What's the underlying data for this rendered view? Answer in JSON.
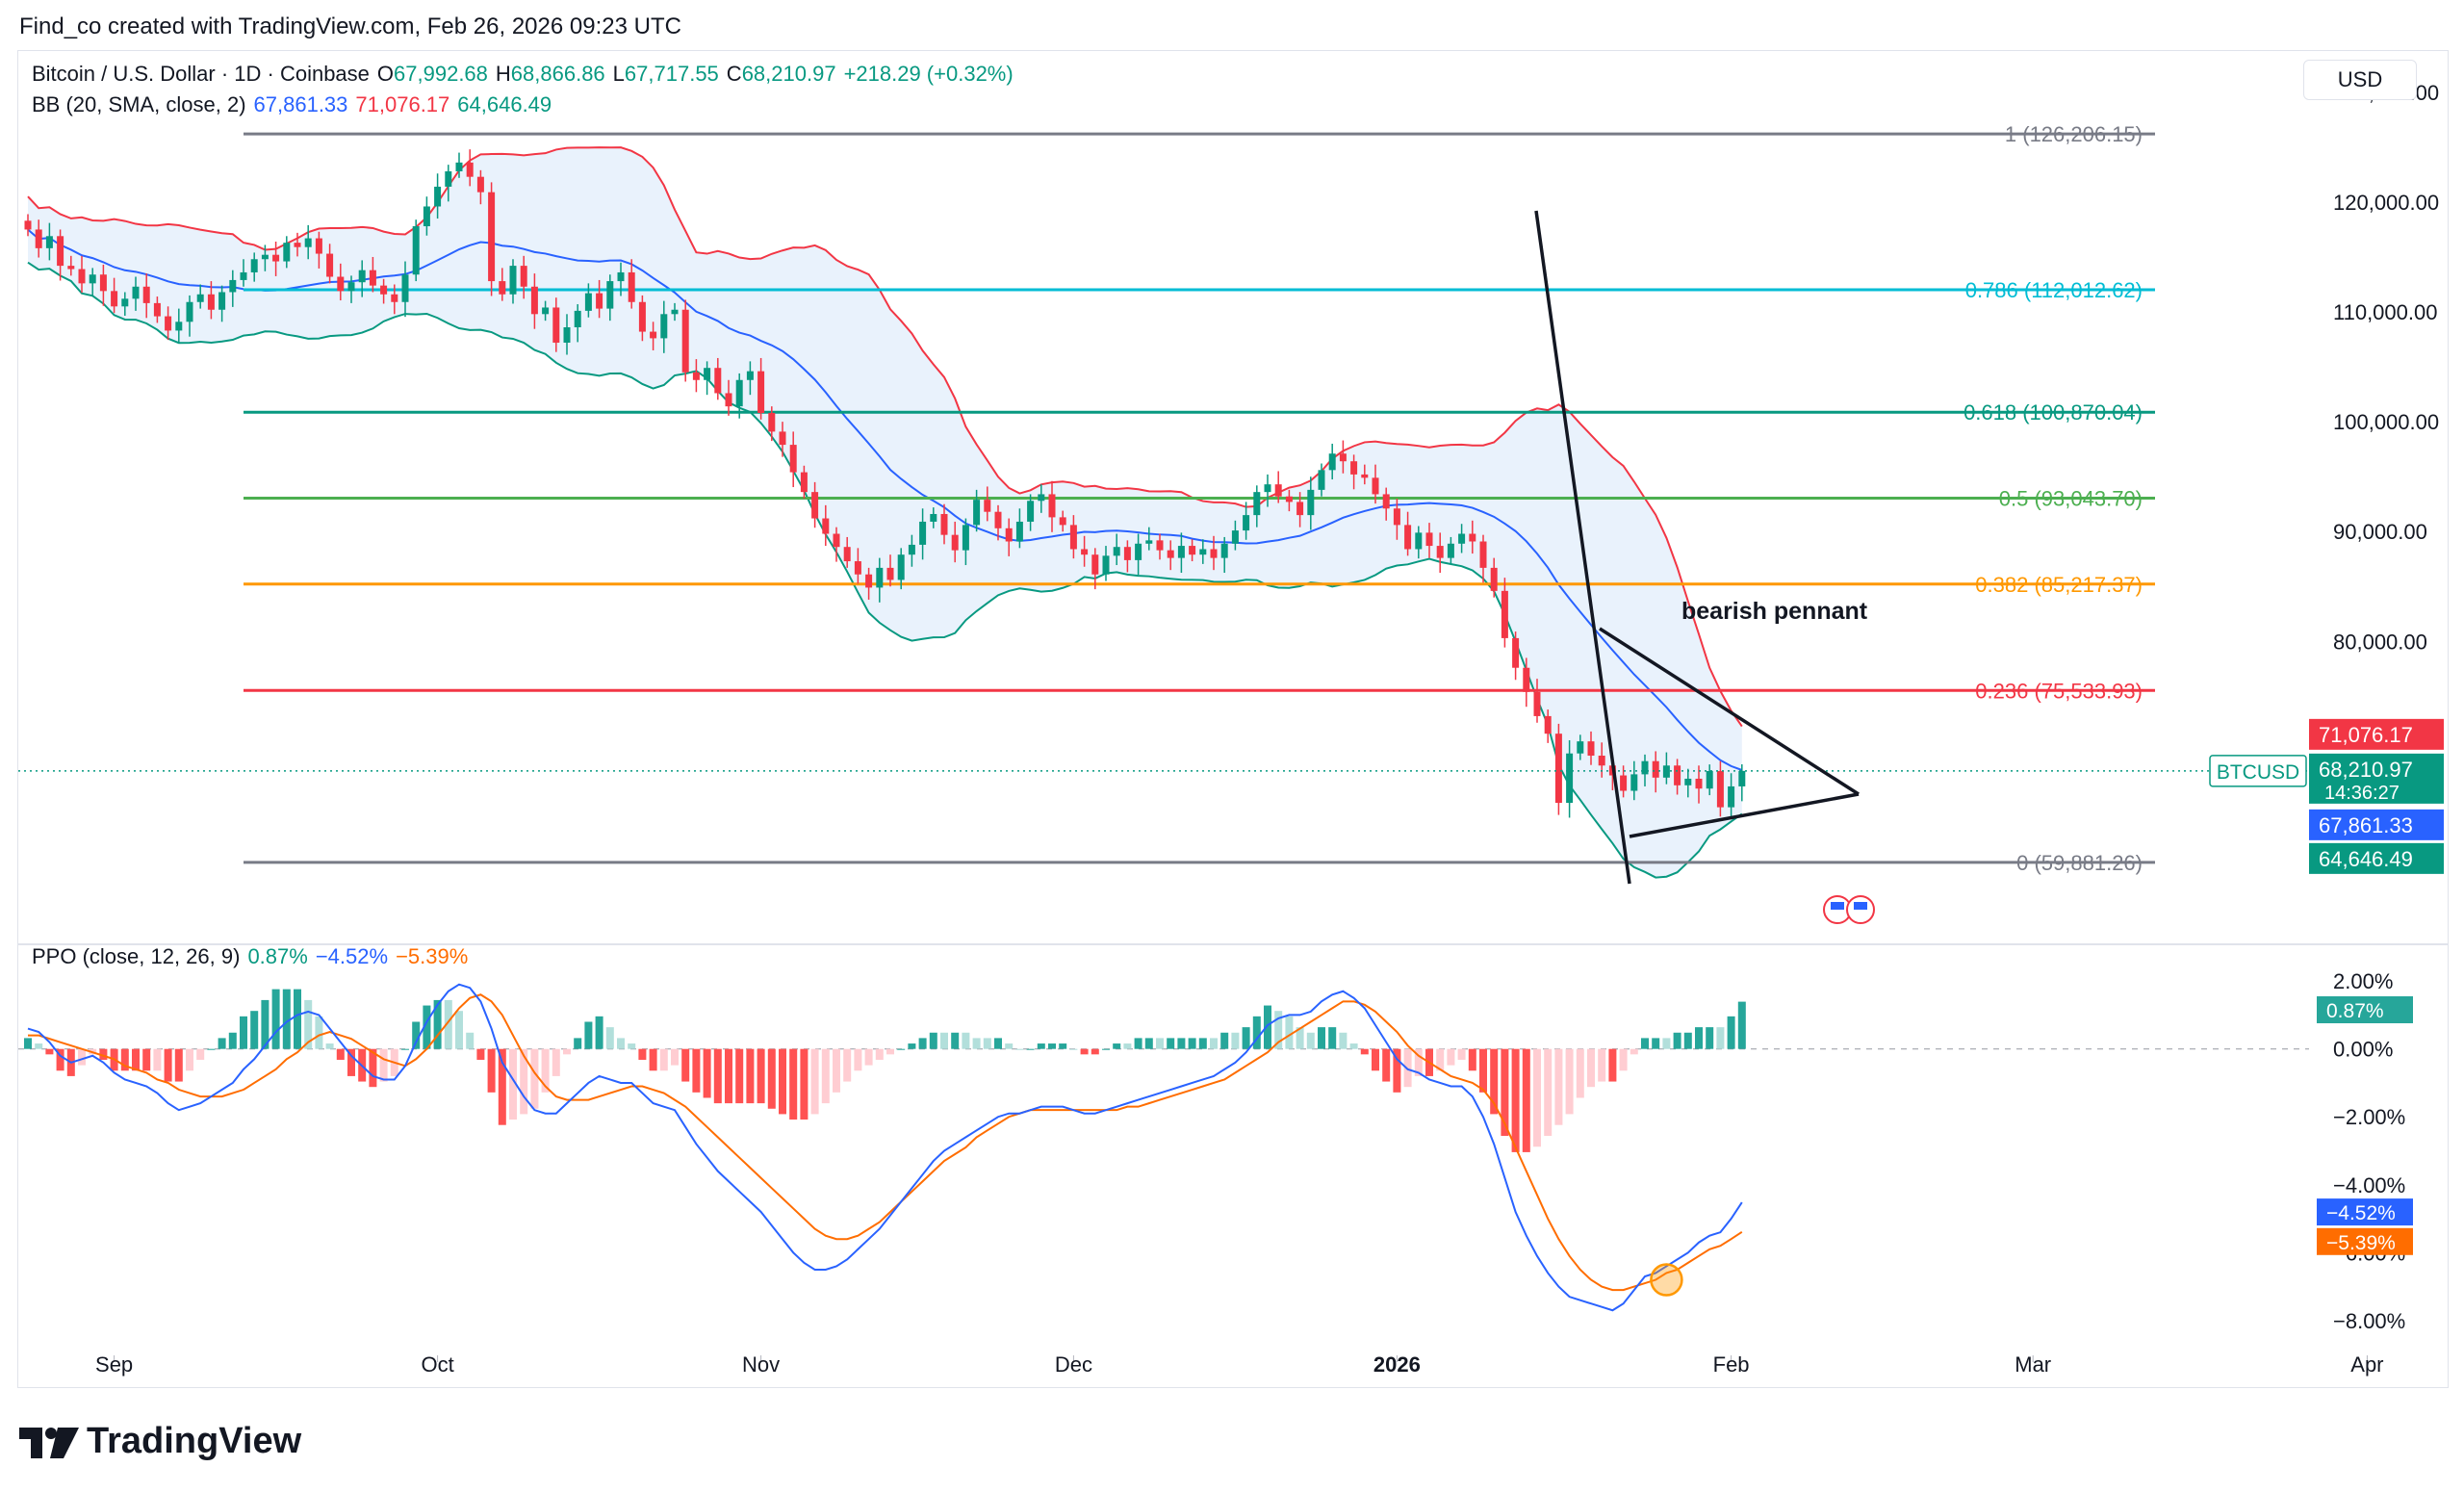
{
  "header": {
    "attribution": "Find_co created with TradingView.com, Feb 26, 2026 09:23 UTC"
  },
  "legend": {
    "symbol": "Bitcoin / U.S. Dollar · 1D · Coinbase",
    "open_label": "O",
    "open": "67,992.68",
    "high_label": "H",
    "high": "68,866.86",
    "low_label": "L",
    "low": "67,717.55",
    "close_label": "C",
    "close": "68,210.97",
    "change": "+218.29 (+0.32%)",
    "bb_label": "BB (20, SMA, close, 2)",
    "bb_basis": "67,861.33",
    "bb_upper": "71,076.17",
    "bb_lower": "64,646.49",
    "ppo_label": "PPO (close, 12, 26, 9)",
    "ppo_hist": "0.87%",
    "ppo_line": "−4.52%",
    "ppo_signal": "−5.39%"
  },
  "currency": "USD",
  "footer": {
    "brand": "TradingView"
  },
  "colors": {
    "up": "#089981",
    "down": "#f23645",
    "bb_basis": "#2962ff",
    "bb_upper": "#f23645",
    "bb_lower": "#089981",
    "bb_fill": "#e3effb",
    "ppo_line": "#2962ff",
    "ppo_signal": "#ff6d00",
    "hist_up_strong": "#26a69a",
    "hist_up_weak": "#b2dfdb",
    "hist_down_strong": "#ff5252",
    "hist_down_weak": "#ffcdd2"
  },
  "chart_data": [
    {
      "type": "candlestick",
      "x_ticks": [
        "Sep",
        "Oct",
        "Nov",
        "Dec",
        "2026",
        "Feb",
        "Mar",
        "Apr"
      ],
      "y_ticks": [
        "80,000.00",
        "90,000.00",
        "100,000.00",
        "110,000.00",
        "120,000.00",
        "130,000.00"
      ],
      "ylim": [
        54000,
        132000
      ],
      "price_label": {
        "name": "BTCUSD",
        "value": "68,210.97",
        "countdown": "14:36:27"
      },
      "axis_labels": {
        "bb_upper": "71,076.17",
        "bb_basis": "67,861.33",
        "bb_lower": "64,646.49"
      },
      "fibonacci": [
        {
          "label": "1 (126,206.15)",
          "value": 126206.15,
          "color": "#787b86"
        },
        {
          "label": "0.786 (112,012.62)",
          "value": 112012.62,
          "color": "#00bcd4"
        },
        {
          "label": "0.618 (100,870.04)",
          "value": 100870.04,
          "color": "#089981"
        },
        {
          "label": "0.5 (93,043.70)",
          "value": 93043.7,
          "color": "#4caf50"
        },
        {
          "label": "0.382 (85,217.37)",
          "value": 85217.37,
          "color": "#ff9800"
        },
        {
          "label": "0.236 (75,533.93)",
          "value": 75533.93,
          "color": "#f23645"
        },
        {
          "label": "0 (59,881.26)",
          "value": 59881.26,
          "color": "#787b86"
        }
      ],
      "annotation": "bearish pennant",
      "series": [
        {
          "name": "close",
          "values": [
            117500,
            115800,
            116900,
            114200,
            113900,
            112600,
            113400,
            111900,
            110500,
            111200,
            112300,
            110800,
            109600,
            108300,
            109100,
            110900,
            111600,
            110200,
            111800,
            112900,
            113600,
            114800,
            115200,
            114600,
            116300,
            115900,
            116700,
            115300,
            113200,
            111900,
            112700,
            113800,
            112400,
            111600,
            110900,
            113400,
            117800,
            119600,
            121400,
            122800,
            123600,
            122300,
            120900,
            112800,
            111600,
            114200,
            112300,
            109800,
            110400,
            107200,
            108600,
            110100,
            111700,
            110300,
            112800,
            113600,
            110900,
            108200,
            107600,
            109800,
            110200,
            104500,
            103800,
            104900,
            102600,
            101400,
            103800,
            104600,
            100800,
            99100,
            97900,
            95400,
            93600,
            91200,
            89800,
            88600,
            87300,
            86100,
            84900,
            86700,
            85600,
            87900,
            88800,
            90900,
            91600,
            89700,
            88300,
            90600,
            92900,
            91800,
            90300,
            89100,
            90900,
            92800,
            93400,
            91300,
            90600,
            88400,
            87900,
            86100,
            87800,
            88600,
            87400,
            88900,
            89200,
            88300,
            87600,
            88700,
            87900,
            88400,
            87600,
            88900,
            90100,
            91500,
            93600,
            94300,
            93200,
            92700,
            91500,
            93800,
            95600,
            97100,
            96400,
            95200,
            94900,
            93400,
            92100,
            90600,
            88400,
            89900,
            88700,
            87600,
            88900,
            89800,
            89100,
            86700,
            84600,
            80300,
            77600,
            75400,
            73200,
            71600,
            65300,
            69800,
            70900,
            69600,
            68700,
            67800,
            66400,
            67900,
            69100,
            67600,
            68700,
            66900,
            67500,
            66600,
            68200,
            64900,
            66800,
            68210
          ]
        }
      ]
    },
    {
      "type": "line",
      "title": "PPO (close, 12, 26, 9)",
      "y_ticks": [
        "2.00%",
        "0.00%",
        "−2.00%",
        "−4.00%",
        "−6.00%",
        "−8.00%"
      ],
      "ylim": [
        -8.6,
        2.6
      ],
      "value_labels": {
        "hist": "0.87%",
        "ppo": "−4.52%",
        "signal": "−5.39%"
      },
      "series": [
        {
          "name": "PPO",
          "values": [
            0.6,
            0.5,
            0.2,
            -0.2,
            -0.4,
            -0.3,
            -0.2,
            -0.4,
            -0.7,
            -0.9,
            -1.0,
            -1.1,
            -1.3,
            -1.6,
            -1.8,
            -1.7,
            -1.6,
            -1.4,
            -1.2,
            -1.0,
            -0.6,
            -0.3,
            0.1,
            0.5,
            0.8,
            1.0,
            1.1,
            1.0,
            0.6,
            0.2,
            -0.2,
            -0.5,
            -0.8,
            -0.9,
            -0.9,
            -0.5,
            0.2,
            0.8,
            1.3,
            1.7,
            1.9,
            1.8,
            1.4,
            0.6,
            -0.4,
            -0.9,
            -1.4,
            -1.8,
            -1.9,
            -1.9,
            -1.6,
            -1.3,
            -1.0,
            -0.8,
            -0.9,
            -1.0,
            -1.0,
            -1.3,
            -1.6,
            -1.7,
            -1.8,
            -2.3,
            -2.8,
            -3.2,
            -3.6,
            -3.9,
            -4.2,
            -4.5,
            -4.8,
            -5.2,
            -5.6,
            -6.0,
            -6.3,
            -6.5,
            -6.5,
            -6.4,
            -6.2,
            -5.9,
            -5.6,
            -5.3,
            -4.9,
            -4.5,
            -4.1,
            -3.7,
            -3.3,
            -3.0,
            -2.8,
            -2.6,
            -2.4,
            -2.2,
            -2.0,
            -1.9,
            -1.9,
            -1.8,
            -1.7,
            -1.7,
            -1.7,
            -1.8,
            -1.9,
            -1.9,
            -1.8,
            -1.7,
            -1.6,
            -1.5,
            -1.4,
            -1.3,
            -1.2,
            -1.1,
            -1.0,
            -0.9,
            -0.8,
            -0.6,
            -0.4,
            -0.1,
            0.3,
            0.7,
            0.9,
            1.0,
            1.0,
            1.1,
            1.4,
            1.6,
            1.7,
            1.5,
            1.2,
            0.7,
            0.2,
            -0.3,
            -0.6,
            -0.7,
            -0.9,
            -1.0,
            -1.1,
            -1.1,
            -1.4,
            -2.0,
            -2.8,
            -3.8,
            -4.8,
            -5.5,
            -6.1,
            -6.6,
            -7.0,
            -7.3,
            -7.4,
            -7.5,
            -7.6,
            -7.7,
            -7.5,
            -7.1,
            -6.7,
            -6.6,
            -6.4,
            -6.2,
            -6.0,
            -5.7,
            -5.5,
            -5.4,
            -5.0,
            -4.52
          ]
        },
        {
          "name": "Signal",
          "values": [
            0.4,
            0.4,
            0.3,
            0.2,
            0.1,
            0.0,
            -0.1,
            -0.2,
            -0.3,
            -0.5,
            -0.6,
            -0.7,
            -0.9,
            -1.0,
            -1.2,
            -1.3,
            -1.4,
            -1.4,
            -1.4,
            -1.3,
            -1.2,
            -1.0,
            -0.8,
            -0.6,
            -0.3,
            -0.1,
            0.2,
            0.4,
            0.5,
            0.4,
            0.3,
            0.1,
            -0.1,
            -0.3,
            -0.4,
            -0.5,
            -0.3,
            0.0,
            0.4,
            0.8,
            1.2,
            1.5,
            1.6,
            1.4,
            1.0,
            0.4,
            -0.2,
            -0.7,
            -1.1,
            -1.4,
            -1.5,
            -1.5,
            -1.5,
            -1.4,
            -1.3,
            -1.2,
            -1.1,
            -1.1,
            -1.2,
            -1.3,
            -1.5,
            -1.7,
            -2.0,
            -2.3,
            -2.6,
            -2.9,
            -3.2,
            -3.5,
            -3.8,
            -4.1,
            -4.4,
            -4.7,
            -5.0,
            -5.3,
            -5.5,
            -5.6,
            -5.6,
            -5.5,
            -5.3,
            -5.1,
            -4.8,
            -4.5,
            -4.2,
            -3.9,
            -3.6,
            -3.3,
            -3.1,
            -2.9,
            -2.6,
            -2.4,
            -2.2,
            -2.0,
            -1.9,
            -1.8,
            -1.8,
            -1.8,
            -1.8,
            -1.8,
            -1.8,
            -1.8,
            -1.8,
            -1.8,
            -1.7,
            -1.7,
            -1.6,
            -1.5,
            -1.4,
            -1.3,
            -1.2,
            -1.1,
            -1.0,
            -0.9,
            -0.7,
            -0.5,
            -0.3,
            -0.1,
            0.2,
            0.4,
            0.6,
            0.8,
            1.0,
            1.2,
            1.4,
            1.4,
            1.3,
            1.1,
            0.8,
            0.5,
            0.1,
            -0.2,
            -0.4,
            -0.6,
            -0.8,
            -0.9,
            -1.0,
            -1.2,
            -1.6,
            -2.2,
            -2.9,
            -3.6,
            -4.3,
            -5.0,
            -5.6,
            -6.1,
            -6.5,
            -6.8,
            -7.0,
            -7.1,
            -7.1,
            -7.0,
            -6.9,
            -6.8,
            -6.6,
            -6.5,
            -6.3,
            -6.1,
            -5.9,
            -5.8,
            -5.6,
            -5.39
          ]
        }
      ]
    }
  ]
}
